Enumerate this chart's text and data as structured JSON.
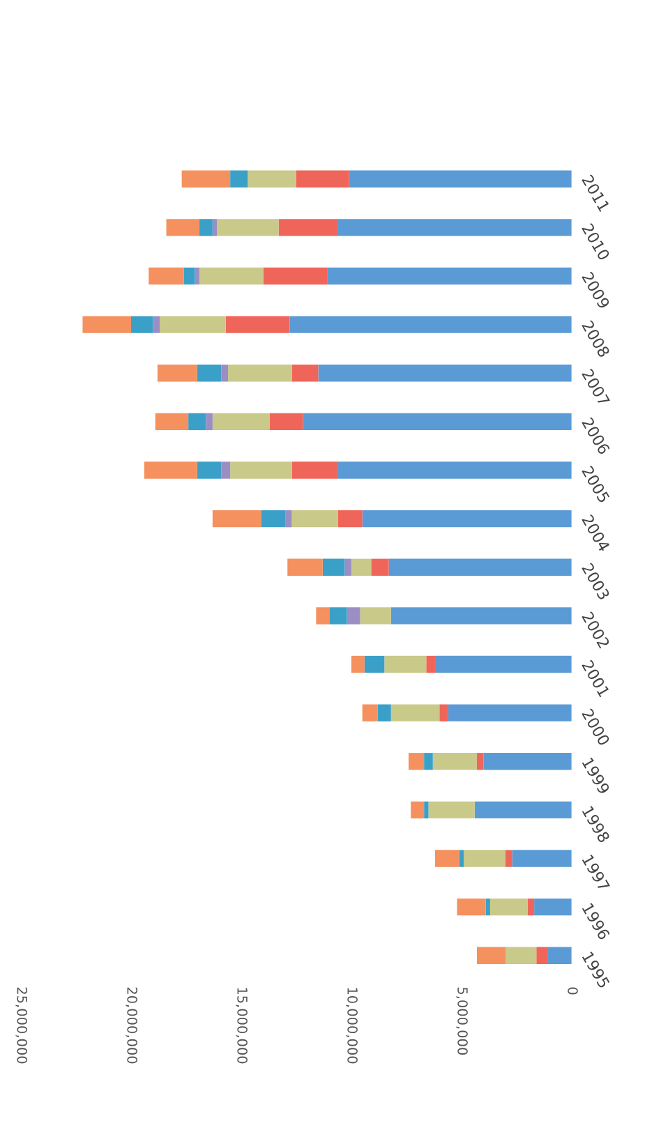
{
  "chart_data": {
    "type": "bar",
    "orientation": "horizontal",
    "stacked": true,
    "categories": [
      "2011",
      "2010",
      "2009",
      "2008",
      "2007",
      "2006",
      "2005",
      "2004",
      "2003",
      "2002",
      "2001",
      "2000",
      "1999",
      "1998",
      "1997",
      "1996",
      "1995"
    ],
    "series": [
      {
        "color": "#5b9bd5",
        "values": [
          10100000,
          10600000,
          11100000,
          12800000,
          11500000,
          12200000,
          10600000,
          9500000,
          8300000,
          8200000,
          6200000,
          5600000,
          4000000,
          4400000,
          2700000,
          1700000,
          1100000
        ]
      },
      {
        "color": "#f0655a",
        "values": [
          2400000,
          2700000,
          2900000,
          2900000,
          1200000,
          1500000,
          2100000,
          1100000,
          800000,
          0,
          400000,
          400000,
          300000,
          0,
          300000,
          300000,
          500000
        ]
      },
      {
        "color": "#c9c98a",
        "values": [
          2200000,
          2800000,
          2900000,
          3000000,
          2900000,
          2600000,
          2800000,
          2100000,
          900000,
          1400000,
          1900000,
          2200000,
          2000000,
          2100000,
          1900000,
          1700000,
          1400000
        ]
      },
      {
        "color": "#9b8ec4",
        "values": [
          0,
          200000,
          200000,
          300000,
          300000,
          300000,
          400000,
          300000,
          300000,
          600000,
          0,
          0,
          0,
          0,
          0,
          0,
          0
        ]
      },
      {
        "color": "#3aa0c8",
        "values": [
          800000,
          600000,
          500000,
          1000000,
          1100000,
          800000,
          1100000,
          1100000,
          1000000,
          800000,
          900000,
          600000,
          400000,
          200000,
          200000,
          200000,
          0
        ]
      },
      {
        "color": "#f4915f",
        "values": [
          2200000,
          1500000,
          1600000,
          2200000,
          1800000,
          1500000,
          2400000,
          2200000,
          1600000,
          600000,
          600000,
          700000,
          700000,
          600000,
          1100000,
          1300000,
          1300000
        ]
      }
    ],
    "xlim": [
      25000000,
      0
    ],
    "xticks": [
      {
        "value": 25000000,
        "label": "25,000,000"
      },
      {
        "value": 20000000,
        "label": "20,000,000"
      },
      {
        "value": 15000000,
        "label": "15,000,000"
      },
      {
        "value": 10000000,
        "label": "10,000,000"
      },
      {
        "value": 5000000,
        "label": "5,000,000"
      },
      0
    ],
    "grid": false,
    "legend": false
  }
}
